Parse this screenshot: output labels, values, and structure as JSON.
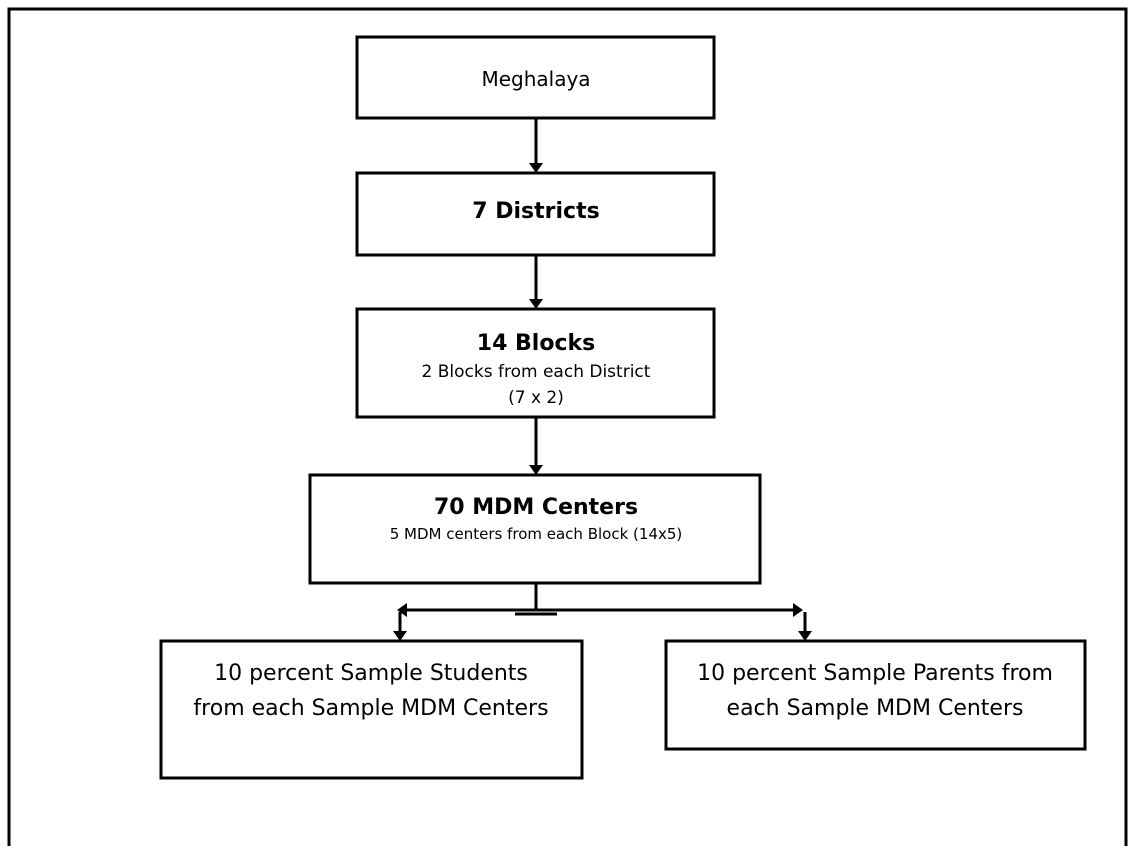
{
  "nodes": [
    {
      "title": "Meghalaya"
    },
    {
      "title": "7 Districts"
    },
    {
      "title": "14 Blocks",
      "lines": [
        "2 Blocks from each District",
        "(7 x 2)"
      ]
    },
    {
      "title": "70 MDM Centers",
      "lines": [
        "5 MDM centers from each Block  (14x5)"
      ]
    },
    {
      "lines": [
        "10 percent Sample Students",
        "from each Sample MDM Centers"
      ]
    },
    {
      "lines": [
        "10 percent Sample Parents from",
        "each Sample MDM Centers"
      ]
    }
  ]
}
